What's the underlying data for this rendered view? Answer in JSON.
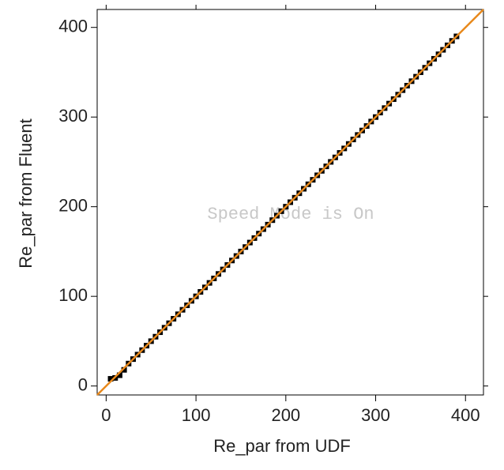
{
  "chart_data": {
    "type": "scatter",
    "xlabel": "Re_par from UDF",
    "ylabel": "Re_par from Fluent",
    "annotation": "Speed Mode is On",
    "xlim": [
      -10,
      420
    ],
    "ylim": [
      -10,
      420
    ],
    "xticks": [
      0,
      100,
      200,
      300,
      400
    ],
    "yticks": [
      0,
      100,
      200,
      300,
      400
    ],
    "series": [
      {
        "color": "#000000",
        "x": [
          5,
          10,
          15,
          20,
          25,
          30,
          35,
          40,
          45,
          50,
          55,
          60,
          65,
          70,
          75,
          80,
          85,
          90,
          95,
          100,
          105,
          110,
          115,
          120,
          125,
          130,
          135,
          140,
          145,
          150,
          155,
          160,
          165,
          170,
          175,
          180,
          185,
          190,
          195,
          200,
          205,
          210,
          215,
          220,
          225,
          230,
          235,
          240,
          245,
          250,
          255,
          260,
          265,
          270,
          275,
          280,
          285,
          290,
          295,
          300,
          305,
          310,
          315,
          320,
          325,
          330,
          335,
          340,
          345,
          350,
          355,
          360,
          365,
          370,
          375,
          380,
          385,
          390
        ],
        "values": [
          8,
          9,
          12,
          18,
          25,
          30,
          35,
          40,
          45,
          50,
          55,
          60,
          65,
          70,
          75,
          80,
          85,
          90,
          95,
          100,
          105,
          110,
          115,
          120,
          125,
          130,
          135,
          140,
          145,
          150,
          155,
          160,
          165,
          170,
          175,
          180,
          185,
          190,
          195,
          200,
          205,
          210,
          215,
          220,
          225,
          230,
          235,
          240,
          245,
          250,
          255,
          260,
          265,
          270,
          275,
          280,
          285,
          290,
          295,
          300,
          305,
          310,
          315,
          320,
          325,
          330,
          335,
          340,
          345,
          350,
          355,
          360,
          365,
          370,
          375,
          380,
          385,
          390
        ]
      },
      {
        "type": "line",
        "color": "#e8891c",
        "x": [
          -10,
          420
        ],
        "values": [
          -10,
          420
        ]
      }
    ]
  }
}
